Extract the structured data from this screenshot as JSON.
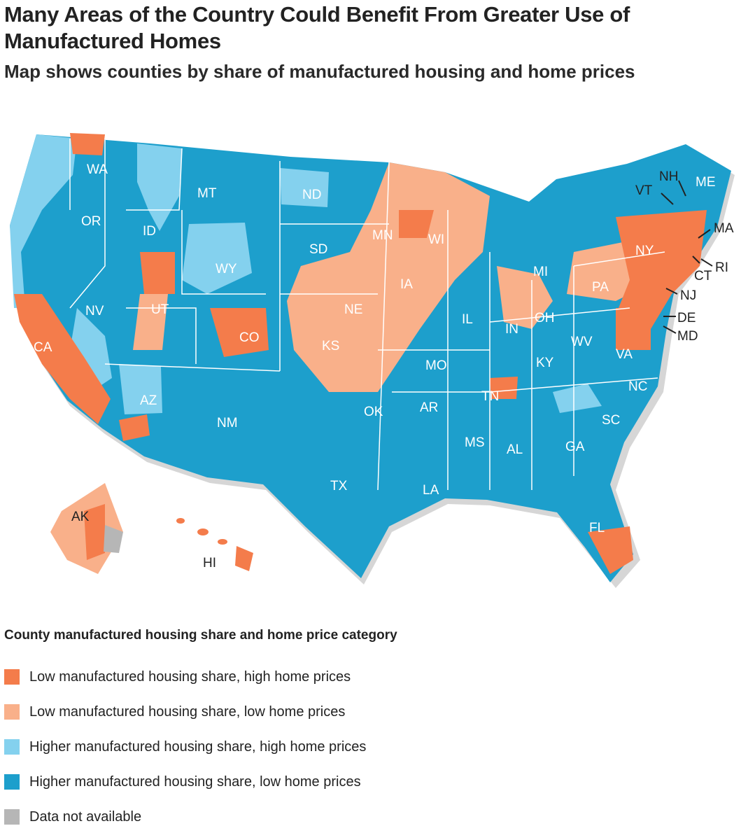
{
  "header": {
    "title": "Many Areas of the Country Could Benefit From Greater Use of Manufactured Homes",
    "subtitle": "Map shows counties by share of manufactured housing and home prices"
  },
  "colors": {
    "low_share_high_price": "#f47c4b",
    "low_share_low_price": "#f9b08a",
    "higher_share_high_price": "#84d1ee",
    "higher_share_low_price": "#1d9fcc",
    "not_available": "#b6b6b6",
    "state_border": "#ffffff",
    "shadow": "#d6d6d6"
  },
  "map": {
    "states": {
      "WA": "WA",
      "OR": "OR",
      "CA": "CA",
      "NV": "NV",
      "ID": "ID",
      "MT": "MT",
      "WY": "WY",
      "UT": "UT",
      "AZ": "AZ",
      "CO": "CO",
      "NM": "NM",
      "ND": "ND",
      "SD": "SD",
      "NE": "NE",
      "KS": "KS",
      "OK": "OK",
      "TX": "TX",
      "MN": "MN",
      "IA": "IA",
      "MO": "MO",
      "AR": "AR",
      "LA": "LA",
      "WI": "WI",
      "IL": "IL",
      "MI": "MI",
      "IN": "IN",
      "OH": "OH",
      "KY": "KY",
      "TN": "TN",
      "MS": "MS",
      "AL": "AL",
      "GA": "GA",
      "FL": "FL",
      "SC": "SC",
      "NC": "NC",
      "VA": "VA",
      "WV": "WV",
      "PA": "PA",
      "NY": "NY",
      "VT": "VT",
      "NH": "NH",
      "ME": "ME",
      "MA": "MA",
      "RI": "RI",
      "CT": "CT",
      "NJ": "NJ",
      "DE": "DE",
      "MD": "MD",
      "AK": "AK",
      "HI": "HI"
    }
  },
  "legend": {
    "title": "County manufactured housing share and home price category",
    "items": [
      {
        "label": "Low manufactured housing share, high home prices",
        "color": "#f47c4b"
      },
      {
        "label": "Low manufactured housing share, low home prices",
        "color": "#f9b08a"
      },
      {
        "label": "Higher manufactured housing share, high home prices",
        "color": "#84d1ee"
      },
      {
        "label": "Higher manufactured housing share, low home prices",
        "color": "#1d9fcc"
      },
      {
        "label": "Data not available",
        "color": "#b6b6b6"
      }
    ]
  }
}
